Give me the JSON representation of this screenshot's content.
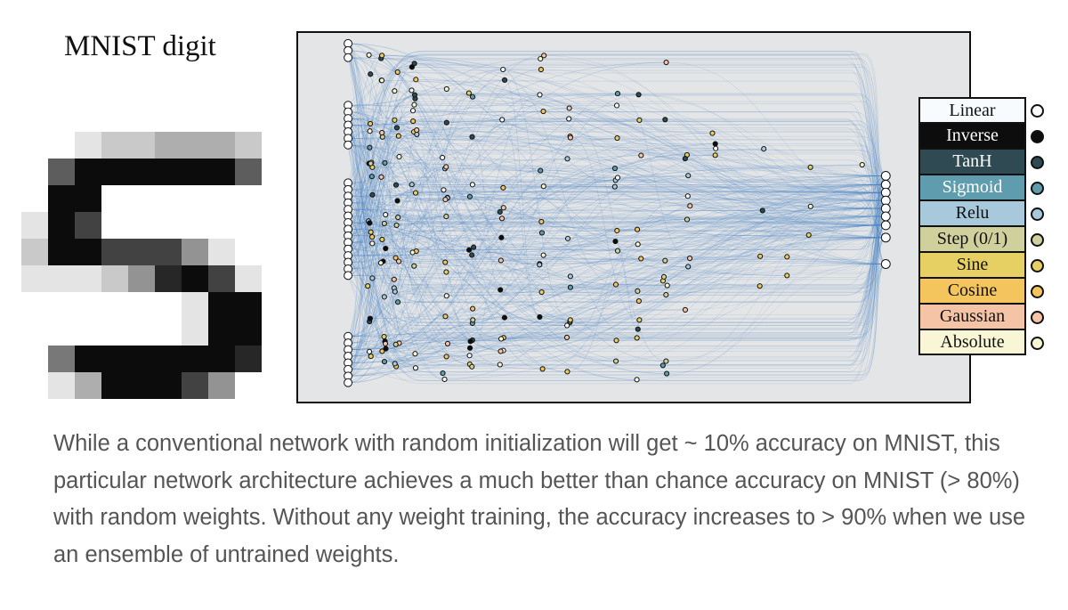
{
  "figure": {
    "digit_title": "MNIST digit",
    "digit_label": "5",
    "legend": [
      {
        "label": "Linear",
        "color": "#f7fbfd",
        "text_color": "#111111"
      },
      {
        "label": "Inverse",
        "color": "#0d0d0d",
        "text_color": "#ffffff"
      },
      {
        "label": "TanH",
        "color": "#2f4a52",
        "text_color": "#ffffff"
      },
      {
        "label": "Sigmoid",
        "color": "#5e9cae",
        "text_color": "#ffffff"
      },
      {
        "label": "Relu",
        "color": "#a8c8dc",
        "text_color": "#111111"
      },
      {
        "label": "Step (0/1)",
        "color": "#cfd09c",
        "text_color": "#111111"
      },
      {
        "label": "Sine",
        "color": "#e6cf63",
        "text_color": "#111111"
      },
      {
        "label": "Cosine",
        "color": "#f3c55c",
        "text_color": "#111111"
      },
      {
        "label": "Gaussian",
        "color": "#f5c3a5",
        "text_color": "#111111"
      },
      {
        "label": "Absolute",
        "color": "#f8f6d4",
        "text_color": "#111111"
      }
    ],
    "edge_color": "#4a86c5",
    "panel_background": "#e4e5e6"
  },
  "caption": "While a conventional network with random initialization will get ~ 10% accuracy on MNIST, this particular network architecture achieves a much better than chance accuracy on MNIST (> 80%) with random weights. Without any weight training, the accuracy increases to > 90% when we use an ensemble of untrained weights."
}
